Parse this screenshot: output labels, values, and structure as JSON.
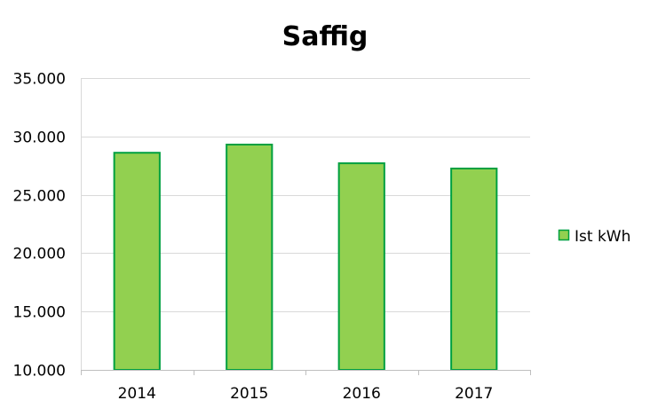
{
  "chart_data": {
    "type": "bar",
    "title": "Saffig",
    "xlabel": "",
    "ylabel": "",
    "categories": [
      "2014",
      "2015",
      "2016",
      "2017"
    ],
    "series": [
      {
        "name": "Ist kWh",
        "values": [
          28600,
          29300,
          27700,
          27250
        ]
      }
    ],
    "ylim": [
      10000,
      35000
    ],
    "yticks": [
      10000,
      15000,
      20000,
      25000,
      30000,
      35000
    ],
    "ytick_labels": [
      "10.000",
      "15.000",
      "20.000",
      "25.000",
      "30.000",
      "35.000"
    ],
    "grid": true,
    "legend_position": "right",
    "colors": {
      "bar_fill": "#92d050",
      "bar_stroke": "#00a040",
      "grid": "#d9d9d9",
      "axis": "#bfbfbf"
    }
  }
}
